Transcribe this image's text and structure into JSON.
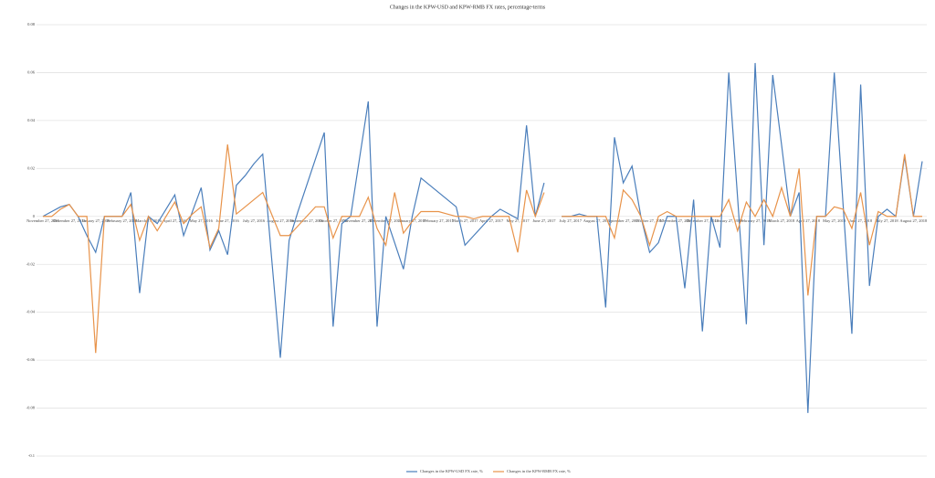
{
  "chart_data": {
    "type": "line",
    "title": "Changes in the KPW-USD and KPW-RMB FX rates, percentage-terms",
    "categories": [
      "November 27, 2015",
      null,
      null,
      "December 27, 2015",
      null,
      null,
      "January 27, 2016",
      null,
      null,
      "February 27, 2016",
      null,
      null,
      "March 27, 2016",
      null,
      null,
      "April 27, 2016",
      null,
      null,
      "May 27, 2016",
      null,
      null,
      "June 27, 2016",
      null,
      null,
      "July 27, 2016",
      null,
      null,
      "August 27, 2016",
      null,
      null,
      "September 27, 2016",
      null,
      null,
      "October 27, 2016",
      null,
      null,
      "November 27, 2016",
      null,
      null,
      "December 27, 2016",
      null,
      null,
      "January 27, 2017",
      null,
      null,
      "February 27, 2017",
      null,
      null,
      "March 27, 2017",
      null,
      null,
      "April 27, 2017",
      null,
      null,
      "May 27, 2017",
      null,
      null,
      "June 27, 2017",
      null,
      null,
      "July 27, 2017",
      null,
      null,
      "August 27, 2017",
      null,
      null,
      "September 27, 2017",
      null,
      null,
      "October 27, 2017",
      null,
      null,
      "November 27, 2017",
      null,
      null,
      "December 27, 2017",
      null,
      null,
      "January 27, 2018",
      null,
      null,
      "February 27, 2018",
      null,
      null,
      "March 27, 2018",
      null,
      null,
      "April 27, 2018",
      null,
      null,
      "May 27, 2018",
      null,
      null,
      "June 27, 2018",
      null,
      null,
      "July 27, 2018",
      null,
      null,
      "August 27, 2018",
      null
    ],
    "series": [
      {
        "name": "Changes in the KPW-USD FX rate, %",
        "color": "#4a7ebb",
        "values": [
          0,
          0.002,
          0.004,
          0.005,
          0,
          -0.008,
          -0.015,
          0,
          0,
          0,
          0.01,
          -0.032,
          0,
          -0.003,
          0.003,
          0.009,
          -0.008,
          0.002,
          0.012,
          -0.014,
          -0.006,
          -0.016,
          0.013,
          0.017,
          0.022,
          0.026,
          -0.017,
          -0.059,
          -0.01,
          0.002,
          0.013,
          0.024,
          0.035,
          -0.046,
          -0.003,
          0,
          0.024,
          0.048,
          -0.046,
          0,
          -0.011,
          -0.022,
          0,
          0.016,
          0.013,
          0.01,
          0.007,
          0.004,
          -0.012,
          -0.008,
          -0.004,
          0,
          0.003,
          0.001,
          -0.001,
          0.038,
          0,
          0.014,
          null,
          0,
          0,
          0.001,
          0,
          0,
          -0.038,
          0.033,
          0.014,
          0.021,
          0,
          -0.015,
          -0.011,
          0,
          0,
          -0.03,
          0.007,
          -0.048,
          0,
          -0.013,
          0.06,
          0.008,
          -0.045,
          0.064,
          -0.012,
          0.059,
          0.03,
          0,
          0.01,
          -0.082,
          0,
          0,
          0.06,
          0.005,
          -0.049,
          0.055,
          -0.029,
          0,
          0.003,
          0,
          0.025,
          0,
          0.023
        ]
      },
      {
        "name": "Changes in the KPW-RMB FX rate, %",
        "color": "#e8934a",
        "values": [
          0,
          0,
          0.003,
          0.005,
          0,
          0,
          -0.057,
          0,
          0,
          0,
          0.005,
          -0.01,
          0,
          -0.006,
          0,
          0.006,
          -0.003,
          0.001,
          0.004,
          -0.013,
          -0.005,
          0.03,
          0.001,
          0.004,
          0.007,
          0.01,
          0.001,
          -0.008,
          -0.008,
          -0.004,
          0,
          0.004,
          0.004,
          -0.009,
          0,
          0,
          0,
          0.008,
          -0.005,
          -0.012,
          0.01,
          -0.007,
          -0.002,
          0.002,
          0.002,
          0.002,
          0.001,
          0,
          0,
          -0.001,
          0,
          0,
          0,
          0,
          -0.015,
          0.011,
          0,
          0.01,
          null,
          0,
          0,
          0,
          0,
          0,
          0,
          -0.009,
          0.011,
          0.007,
          0,
          -0.012,
          0,
          0.002,
          0,
          0,
          0,
          0,
          0,
          0,
          0.007,
          -0.006,
          0.006,
          0,
          0.007,
          0,
          0.012,
          0,
          0.02,
          -0.033,
          0,
          0,
          0.004,
          0.003,
          -0.005,
          0.01,
          -0.012,
          0.002,
          0,
          0,
          0.026,
          0,
          0
        ]
      }
    ],
    "ylim": [
      -0.1,
      0.08
    ],
    "yticks": [
      -0.1,
      -0.08,
      -0.06,
      -0.04,
      -0.02,
      0,
      0.02,
      0.04,
      0.06,
      0.08
    ],
    "grid": true
  }
}
